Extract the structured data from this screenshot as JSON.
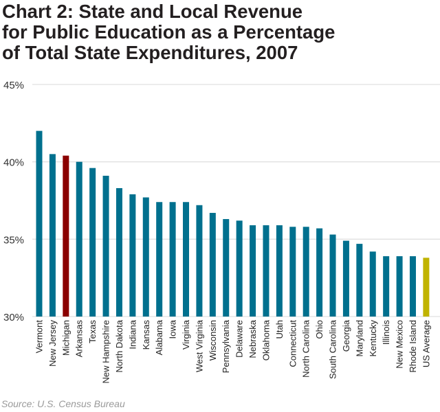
{
  "chart_data": {
    "type": "bar",
    "title": "Chart 2: State and Local Revenue\nfor Public Education as a Percentage\nof Total State Expenditures, 2007",
    "xlabel": "",
    "ylabel": "",
    "ylim": [
      30,
      45
    ],
    "yticks": [
      "30%",
      "35%",
      "40%",
      "45%"
    ],
    "ytick_values": [
      30,
      35,
      40,
      45
    ],
    "grid": true,
    "categories": [
      "Vermont",
      "New Jersey",
      "Michigan",
      "Arkansas",
      "Texas",
      "New Hampshire",
      "North Dakota",
      "Indiana",
      "Kansas",
      "Alabama",
      "Iowa",
      "Virginia",
      "West Virginia",
      "Wisconsin",
      "Pennsylvania",
      "Delaware",
      "Nebraska",
      "Oklahoma",
      "Utah",
      "Connecticut",
      "North Carolina",
      "Ohio",
      "South Carolina",
      "Georgia",
      "Maryland",
      "Kentucky",
      "Illinois",
      "New Mexico",
      "Rhode Island",
      "US Average"
    ],
    "values": [
      42.0,
      40.5,
      40.4,
      40.0,
      39.6,
      39.1,
      38.3,
      37.9,
      37.7,
      37.4,
      37.4,
      37.4,
      37.2,
      36.7,
      36.3,
      36.2,
      35.9,
      35.9,
      35.9,
      35.8,
      35.8,
      35.7,
      35.3,
      34.9,
      34.7,
      34.2,
      33.9,
      33.9,
      33.9,
      33.8
    ],
    "colors": {
      "default": "#00708e",
      "Michigan": "#8b0000",
      "US Average": "#c0b300"
    },
    "source": "Source: U.S. Census Bureau"
  }
}
